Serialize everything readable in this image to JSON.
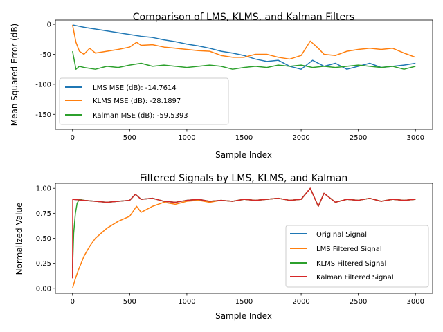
{
  "chart_data": [
    {
      "type": "line",
      "title": "Comparison of LMS, KLMS, and Kalman Filters",
      "xlabel": "Sample Index",
      "ylabel": "Mean Squared Error (dB)",
      "xlim": [
        -150,
        3150
      ],
      "ylim": [
        -175,
        7
      ],
      "xticks": [
        0,
        500,
        1000,
        1500,
        2000,
        2500,
        3000
      ],
      "yticks": [
        0,
        -50,
        -100,
        -150
      ],
      "legend": "lower-left",
      "grid": false,
      "series": [
        {
          "name": "LMS MSE (dB): -14.7614",
          "color": "#1f77b4",
          "x": [
            0,
            100,
            200,
            300,
            400,
            500,
            600,
            700,
            800,
            900,
            1000,
            1100,
            1200,
            1300,
            1400,
            1500,
            1600,
            1700,
            1800,
            1900,
            2000,
            2100,
            2200,
            2300,
            2400,
            2500,
            2600,
            2700,
            2800,
            2900,
            3000
          ],
          "values": [
            -1,
            -5,
            -8,
            -11,
            -14,
            -17,
            -20,
            -22,
            -26,
            -29,
            -33,
            -36,
            -40,
            -45,
            -48,
            -52,
            -58,
            -62,
            -60,
            -70,
            -75,
            -60,
            -70,
            -65,
            -75,
            -70,
            -65,
            -72,
            -70,
            -68,
            -65
          ]
        },
        {
          "name": "KLMS MSE (dB): -28.1897",
          "color": "#ff7f0e",
          "x": [
            0,
            30,
            60,
            100,
            150,
            200,
            300,
            400,
            500,
            560,
            600,
            700,
            800,
            900,
            1000,
            1100,
            1200,
            1300,
            1400,
            1500,
            1600,
            1700,
            1800,
            1900,
            2000,
            2080,
            2150,
            2200,
            2300,
            2400,
            2500,
            2600,
            2700,
            2800,
            2900,
            3000
          ],
          "values": [
            -1,
            -30,
            -45,
            -50,
            -40,
            -48,
            -45,
            -42,
            -38,
            -30,
            -35,
            -34,
            -38,
            -40,
            -42,
            -44,
            -45,
            -52,
            -55,
            -55,
            -50,
            -50,
            -55,
            -58,
            -52,
            -28,
            -40,
            -50,
            -52,
            -45,
            -42,
            -40,
            -42,
            -40,
            -48,
            -55
          ]
        },
        {
          "name": "Kalman MSE (dB): -59.5393",
          "color": "#2ca02c",
          "x": [
            0,
            30,
            60,
            100,
            200,
            300,
            400,
            500,
            600,
            700,
            800,
            900,
            1000,
            1100,
            1200,
            1300,
            1400,
            1500,
            1600,
            1700,
            1800,
            1900,
            2000,
            2100,
            2200,
            2300,
            2400,
            2500,
            2600,
            2700,
            2800,
            2900,
            3000
          ],
          "values": [
            -45,
            -75,
            -70,
            -72,
            -75,
            -70,
            -72,
            -68,
            -65,
            -70,
            -68,
            -70,
            -72,
            -70,
            -68,
            -70,
            -75,
            -72,
            -70,
            -72,
            -68,
            -70,
            -68,
            -72,
            -70,
            -72,
            -70,
            -68,
            -70,
            -72,
            -70,
            -75,
            -70
          ]
        }
      ]
    },
    {
      "type": "line",
      "title": "Filtered Signals by LMS, KLMS, and Kalman",
      "xlabel": "Sample Index",
      "ylabel": "Normalized Value",
      "xlim": [
        -150,
        3150
      ],
      "ylim": [
        -0.05,
        1.05
      ],
      "xticks": [
        0,
        500,
        1000,
        1500,
        2000,
        2500,
        3000
      ],
      "yticks": [
        0.0,
        0.25,
        0.5,
        0.75,
        1.0
      ],
      "ytick_labels": [
        "0.00",
        "0.25",
        "0.50",
        "0.75",
        "1.00"
      ],
      "legend": "lower-right",
      "grid": false,
      "series": [
        {
          "name": "Original Signal",
          "color": "#1f77b4",
          "x": [
            0,
            100,
            200,
            300,
            400,
            500,
            550,
            600,
            700,
            800,
            900,
            1000,
            1100,
            1200,
            1300,
            1400,
            1500,
            1600,
            1700,
            1800,
            1900,
            2000,
            2080,
            2150,
            2200,
            2300,
            2400,
            2500,
            2600,
            2700,
            2800,
            2900,
            3000
          ],
          "values": [
            0.89,
            0.88,
            0.87,
            0.86,
            0.87,
            0.88,
            0.94,
            0.89,
            0.9,
            0.87,
            0.86,
            0.88,
            0.89,
            0.87,
            0.88,
            0.87,
            0.89,
            0.88,
            0.89,
            0.9,
            0.88,
            0.89,
            1.0,
            0.82,
            0.95,
            0.86,
            0.89,
            0.88,
            0.9,
            0.87,
            0.89,
            0.88,
            0.89
          ]
        },
        {
          "name": "LMS Filtered Signal",
          "color": "#ff7f0e",
          "x": [
            0,
            20,
            50,
            100,
            150,
            200,
            300,
            400,
            500,
            560,
            600,
            700,
            800,
            900,
            1000,
            1100,
            1200,
            1300,
            1400,
            1500,
            1600,
            1700,
            1800,
            1900,
            2000,
            2080,
            2150,
            2200,
            2300,
            2400,
            2500,
            2600,
            2700,
            2800,
            2900,
            3000
          ],
          "values": [
            0.0,
            0.08,
            0.18,
            0.32,
            0.42,
            0.5,
            0.6,
            0.67,
            0.72,
            0.82,
            0.76,
            0.82,
            0.86,
            0.84,
            0.87,
            0.88,
            0.86,
            0.88,
            0.87,
            0.89,
            0.88,
            0.89,
            0.9,
            0.88,
            0.89,
            1.0,
            0.82,
            0.95,
            0.86,
            0.89,
            0.88,
            0.9,
            0.87,
            0.89,
            0.88,
            0.89
          ]
        },
        {
          "name": "KLMS Filtered Signal",
          "color": "#2ca02c",
          "x": [
            0,
            10,
            25,
            40,
            60,
            100,
            200,
            300,
            400,
            500,
            550,
            600,
            700,
            800,
            900,
            1000,
            1100,
            1200,
            1300,
            1400,
            1500,
            1600,
            1700,
            1800,
            1900,
            2000,
            2080,
            2150,
            2200,
            2300,
            2400,
            2500,
            2600,
            2700,
            2800,
            2900,
            3000
          ],
          "values": [
            0.2,
            0.55,
            0.75,
            0.85,
            0.89,
            0.88,
            0.87,
            0.86,
            0.87,
            0.88,
            0.94,
            0.89,
            0.9,
            0.87,
            0.86,
            0.88,
            0.89,
            0.87,
            0.88,
            0.87,
            0.89,
            0.88,
            0.89,
            0.9,
            0.88,
            0.89,
            1.0,
            0.82,
            0.95,
            0.86,
            0.89,
            0.88,
            0.9,
            0.87,
            0.89,
            0.88,
            0.89
          ]
        },
        {
          "name": "Kalman Filtered Signal",
          "color": "#d62728",
          "x": [
            0,
            2,
            100,
            200,
            300,
            400,
            500,
            550,
            600,
            700,
            800,
            900,
            1000,
            1100,
            1200,
            1300,
            1400,
            1500,
            1600,
            1700,
            1800,
            1900,
            2000,
            2080,
            2150,
            2200,
            2300,
            2400,
            2500,
            2600,
            2700,
            2800,
            2900,
            3000
          ],
          "values": [
            0.1,
            0.89,
            0.88,
            0.87,
            0.86,
            0.87,
            0.88,
            0.94,
            0.89,
            0.9,
            0.87,
            0.86,
            0.88,
            0.89,
            0.87,
            0.88,
            0.87,
            0.89,
            0.88,
            0.89,
            0.9,
            0.88,
            0.89,
            1.0,
            0.82,
            0.95,
            0.86,
            0.89,
            0.88,
            0.9,
            0.87,
            0.89,
            0.88,
            0.89
          ]
        }
      ]
    }
  ]
}
